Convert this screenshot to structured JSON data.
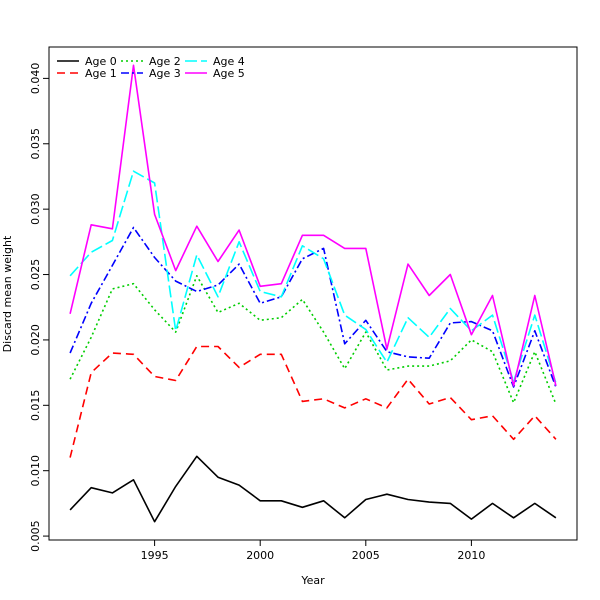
{
  "chart_data": {
    "type": "line",
    "title": "",
    "xlabel": "Year",
    "ylabel": "Discard mean weight",
    "xlim": [
      1990,
      2015
    ],
    "ylim": [
      0.0047,
      0.0424
    ],
    "x_ticks": [
      1995,
      2000,
      2005,
      2010
    ],
    "y_ticks": [
      0.005,
      0.01,
      0.015,
      0.02,
      0.025,
      0.03,
      0.035,
      0.04
    ],
    "y_tick_labels": [
      "0.005",
      "0.010",
      "0.015",
      "0.020",
      "0.025",
      "0.030",
      "0.035",
      "0.040"
    ],
    "legend_position": "top-left",
    "grid": false,
    "x": [
      1991,
      1992,
      1993,
      1994,
      1995,
      1996,
      1997,
      1998,
      1999,
      2000,
      2001,
      2002,
      2003,
      2004,
      2005,
      2006,
      2007,
      2008,
      2009,
      2010,
      2011,
      2012,
      2013,
      2014
    ],
    "series": [
      {
        "name": "Age 0",
        "color": "#000000",
        "dash": "",
        "values": [
          0.007,
          0.0087,
          0.0083,
          0.0093,
          0.0061,
          0.0088,
          0.0111,
          0.0095,
          0.0089,
          0.0077,
          0.0077,
          0.0072,
          0.0077,
          0.0064,
          0.0078,
          0.0082,
          0.0078,
          0.0076,
          0.0075,
          0.0063,
          0.0075,
          0.0064,
          0.0075,
          0.0064
        ]
      },
      {
        "name": "Age 1",
        "color": "#ff0000",
        "dash": "8,5",
        "values": [
          0.011,
          0.0175,
          0.019,
          0.0189,
          0.0172,
          0.0169,
          0.0195,
          0.0195,
          0.0179,
          0.0189,
          0.0189,
          0.0153,
          0.0155,
          0.0148,
          0.0155,
          0.0148,
          0.017,
          0.0151,
          0.0156,
          0.0139,
          0.0142,
          0.0124,
          0.0142,
          0.0124
        ]
      },
      {
        "name": "Age 2",
        "color": "#00cd00",
        "dash": "2,3",
        "values": [
          0.017,
          0.0202,
          0.0239,
          0.0243,
          0.0223,
          0.0206,
          0.0249,
          0.0221,
          0.0228,
          0.0215,
          0.0217,
          0.0231,
          0.0206,
          0.0178,
          0.0206,
          0.0177,
          0.018,
          0.018,
          0.0184,
          0.02,
          0.0191,
          0.0152,
          0.0191,
          0.0151
        ]
      },
      {
        "name": "Age 3",
        "color": "#0000ff",
        "dash": "8,3,2,3",
        "values": [
          0.019,
          0.0228,
          0.0257,
          0.0286,
          0.0263,
          0.0245,
          0.0237,
          0.0242,
          0.0258,
          0.0228,
          0.0233,
          0.0262,
          0.027,
          0.0197,
          0.0215,
          0.0191,
          0.0187,
          0.0186,
          0.0213,
          0.0214,
          0.0207,
          0.0164,
          0.0207,
          0.0164
        ]
      },
      {
        "name": "Age 4",
        "color": "#00ffff",
        "dash": "12,4",
        "values": [
          0.0249,
          0.0267,
          0.0276,
          0.0329,
          0.032,
          0.0207,
          0.0265,
          0.0233,
          0.0275,
          0.0237,
          0.0233,
          0.0272,
          0.0262,
          0.0219,
          0.0208,
          0.0183,
          0.0217,
          0.0202,
          0.0224,
          0.0207,
          0.0219,
          0.0168,
          0.0219,
          0.0167
        ]
      },
      {
        "name": "Age 5",
        "color": "#ff00ff",
        "dash": "",
        "values": [
          0.022,
          0.0288,
          0.0285,
          0.041,
          0.0296,
          0.0253,
          0.0287,
          0.026,
          0.0284,
          0.0241,
          0.0243,
          0.028,
          0.028,
          0.027,
          0.027,
          0.0193,
          0.0258,
          0.0234,
          0.025,
          0.0204,
          0.0234,
          0.0165,
          0.0234,
          0.0165
        ]
      }
    ]
  }
}
